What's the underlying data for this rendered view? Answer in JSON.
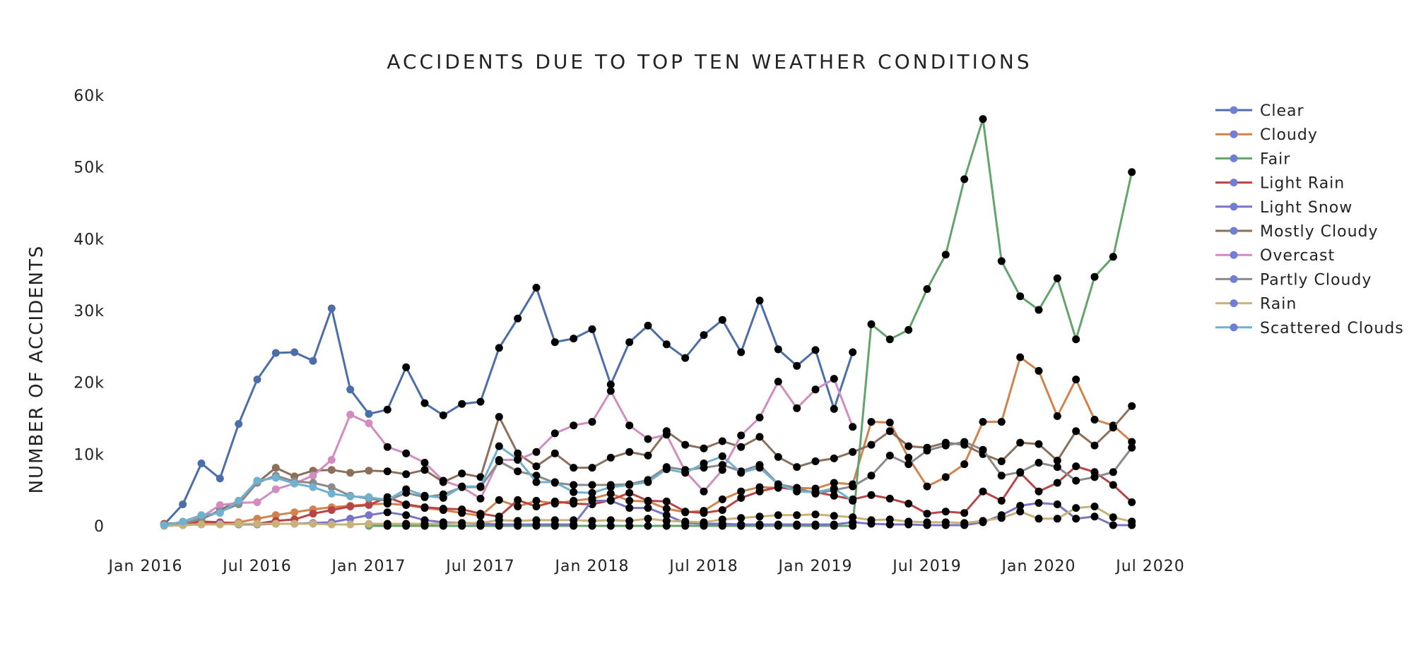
{
  "chart_data": {
    "type": "line",
    "title": "ACCIDENTS DUE TO TOP TEN WEATHER CONDITIONS",
    "xlabel": "",
    "ylabel": "NUMBER OF ACCIDENTS",
    "ylim": [
      0,
      60000
    ],
    "y_ticks": [
      0,
      10000,
      20000,
      30000,
      40000,
      50000,
      60000
    ],
    "y_tick_labels": [
      "0",
      "10k",
      "20k",
      "30k",
      "40k",
      "50k",
      "60k"
    ],
    "x_ticks": [
      "2016-01",
      "2016-07",
      "2017-01",
      "2017-07",
      "2018-01",
      "2018-07",
      "2019-01",
      "2019-07",
      "2020-01",
      "2020-07"
    ],
    "x_tick_labels": [
      "Jan 2016",
      "Jul 2016",
      "Jan 2017",
      "Jul 2017",
      "Jan 2018",
      "Jul 2018",
      "Jan 2019",
      "Jul 2019",
      "Jan 2020",
      "Jul 2020"
    ],
    "x": [
      "2016-02",
      "2016-03",
      "2016-04",
      "2016-05",
      "2016-06",
      "2016-07",
      "2016-08",
      "2016-09",
      "2016-10",
      "2016-11",
      "2016-12",
      "2017-01",
      "2017-02",
      "2017-03",
      "2017-04",
      "2017-05",
      "2017-06",
      "2017-07",
      "2017-08",
      "2017-09",
      "2017-10",
      "2017-11",
      "2017-12",
      "2018-01",
      "2018-02",
      "2018-03",
      "2018-04",
      "2018-05",
      "2018-06",
      "2018-07",
      "2018-08",
      "2018-09",
      "2018-10",
      "2018-11",
      "2018-12",
      "2019-01",
      "2019-02",
      "2019-03",
      "2019-04",
      "2019-05",
      "2019-06",
      "2019-07",
      "2019-08",
      "2019-09",
      "2019-10",
      "2019-11",
      "2019-12",
      "2020-01",
      "2020-02",
      "2020-03",
      "2020-04",
      "2020-05",
      "2020-06"
    ],
    "legend_position": "right",
    "grid": false,
    "series": [
      {
        "name": "Clear",
        "color": "#4c6ea8",
        "values": [
          200,
          3000,
          8700,
          6600,
          14200,
          20400,
          24100,
          24200,
          23000,
          30300,
          19000,
          15600,
          16200,
          22100,
          17100,
          15400,
          17000,
          17300,
          24800,
          28900,
          33200,
          25600,
          26100,
          27400,
          19700,
          25600,
          27900,
          25300,
          23400,
          26600,
          28700,
          24200,
          31400,
          24600,
          22300,
          24500,
          16300,
          24200,
          null,
          null,
          null,
          null,
          null,
          null,
          null,
          null,
          null,
          null,
          null,
          null,
          null,
          null,
          null
        ]
      },
      {
        "name": "Cloudy",
        "color": "#d1834e",
        "values": [
          100,
          200,
          300,
          400,
          500,
          1000,
          1500,
          1900,
          2300,
          2600,
          2800,
          3000,
          3100,
          2900,
          2500,
          2200,
          1800,
          1400,
          3600,
          2700,
          3500,
          3100,
          3500,
          3800,
          4500,
          3500,
          3400,
          2400,
          1900,
          2100,
          3700,
          4800,
          5400,
          5300,
          5300,
          5200,
          6000,
          5800,
          14500,
          14400,
          9500,
          5500,
          6800,
          8600,
          14500,
          14500,
          23500,
          21600,
          15300,
          20400,
          14800,
          14000,
          11700
        ]
      },
      {
        "name": "Fair",
        "color": "#62a46a",
        "values": [
          null,
          null,
          null,
          null,
          null,
          null,
          null,
          null,
          null,
          null,
          null,
          0,
          0,
          0,
          0,
          0,
          0,
          0,
          0,
          0,
          0,
          0,
          0,
          0,
          0,
          0,
          0,
          0,
          0,
          0,
          0,
          0,
          0,
          0,
          0,
          0,
          0,
          0,
          28100,
          26000,
          27300,
          33000,
          37800,
          48300,
          56700,
          36900,
          32000,
          30100,
          34500,
          26000,
          34700,
          37500,
          49300
        ]
      },
      {
        "name": "Light Rain",
        "color": "#b84545",
        "values": [
          300,
          400,
          600,
          500,
          300,
          300,
          700,
          900,
          1700,
          2200,
          2700,
          2900,
          4000,
          3000,
          2600,
          2400,
          2300,
          1700,
          1300,
          3600,
          2700,
          3400,
          3100,
          3000,
          3600,
          4600,
          3500,
          3400,
          2000,
          1800,
          2200,
          3900,
          4800,
          5400,
          5000,
          4700,
          4200,
          3700,
          4300,
          3800,
          3100,
          1700,
          2000,
          1800,
          4800,
          3500,
          7400,
          4800,
          6000,
          8300,
          7500,
          5700,
          3300
        ]
      },
      {
        "name": "Light Snow",
        "color": "#7a74c9",
        "values": [
          0,
          100,
          200,
          300,
          200,
          200,
          300,
          300,
          400,
          500,
          1000,
          1500,
          1900,
          1500,
          800,
          500,
          400,
          300,
          200,
          200,
          200,
          200,
          200,
          3500,
          3500,
          2500,
          2500,
          1500,
          400,
          300,
          300,
          200,
          200,
          200,
          200,
          200,
          200,
          500,
          300,
          200,
          200,
          100,
          100,
          100,
          500,
          1500,
          2800,
          3200,
          3000,
          1000,
          1300,
          100,
          100
        ]
      },
      {
        "name": "Mostly Cloudy",
        "color": "#8b6f5a",
        "values": [
          200,
          500,
          900,
          2200,
          3500,
          6000,
          8100,
          6900,
          7700,
          7800,
          7400,
          7700,
          7600,
          7200,
          7800,
          6100,
          7300,
          6800,
          15200,
          10100,
          8300,
          10100,
          8100,
          8100,
          9500,
          10300,
          9800,
          13200,
          11300,
          10800,
          11800,
          11000,
          12400,
          9600,
          8200,
          9000,
          9400,
          10300,
          11300,
          13200,
          11100,
          10900,
          11600,
          11300,
          10000,
          9000,
          11600,
          11400,
          9100,
          13200,
          11200,
          13700,
          16700
        ]
      },
      {
        "name": "Overcast",
        "color": "#d28cc0",
        "values": [
          100,
          400,
          1200,
          2900,
          3200,
          3300,
          5100,
          5900,
          7000,
          9200,
          15500,
          14300,
          11000,
          10100,
          8800,
          6300,
          5400,
          3800,
          9200,
          9200,
          10300,
          12900,
          14000,
          14500,
          18800,
          14000,
          12100,
          12700,
          7600,
          4800,
          7800,
          12600,
          15100,
          20100,
          16400,
          19000,
          20500,
          13800,
          null,
          null,
          null,
          null,
          null,
          null,
          null,
          null,
          null,
          null,
          null,
          null,
          null,
          null,
          null
        ]
      },
      {
        "name": "Partly Cloudy",
        "color": "#8a8a8a",
        "values": [
          100,
          300,
          1000,
          2000,
          3000,
          6000,
          7000,
          6200,
          6000,
          5400,
          4200,
          3800,
          3500,
          4600,
          4000,
          4400,
          5400,
          5400,
          9000,
          7600,
          7000,
          6000,
          5700,
          5700,
          5700,
          5800,
          6400,
          8200,
          7800,
          8100,
          8500,
          7600,
          8500,
          5800,
          5300,
          4500,
          5000,
          5500,
          7000,
          9800,
          8600,
          10500,
          11200,
          11700,
          10600,
          7000,
          7500,
          8800,
          8200,
          6300,
          6800,
          7500,
          10900
        ]
      },
      {
        "name": "Rain",
        "color": "#c8b27a",
        "values": [
          0,
          100,
          200,
          200,
          300,
          300,
          300,
          300,
          300,
          200,
          200,
          300,
          300,
          300,
          300,
          300,
          400,
          400,
          800,
          700,
          800,
          800,
          800,
          700,
          800,
          700,
          1000,
          700,
          600,
          500,
          900,
          1100,
          1300,
          1500,
          1500,
          1600,
          1400,
          1200,
          800,
          900,
          600,
          500,
          500,
          400,
          700,
          1100,
          2000,
          1000,
          1000,
          2500,
          2700,
          1200,
          600
        ]
      },
      {
        "name": "Scattered Clouds",
        "color": "#70b1cf",
        "values": [
          100,
          600,
          1500,
          1800,
          3500,
          6300,
          6700,
          5900,
          5400,
          4500,
          4100,
          4000,
          3600,
          5100,
          4200,
          3900,
          5500,
          5500,
          11100,
          9300,
          6100,
          6100,
          4700,
          4600,
          5400,
          5700,
          6100,
          7900,
          7400,
          8700,
          9700,
          7400,
          8100,
          5800,
          4800,
          4700,
          5200,
          3500,
          null,
          null,
          null,
          null,
          null,
          null,
          null,
          null,
          null,
          null,
          null,
          null,
          null,
          null,
          null
        ]
      }
    ]
  }
}
